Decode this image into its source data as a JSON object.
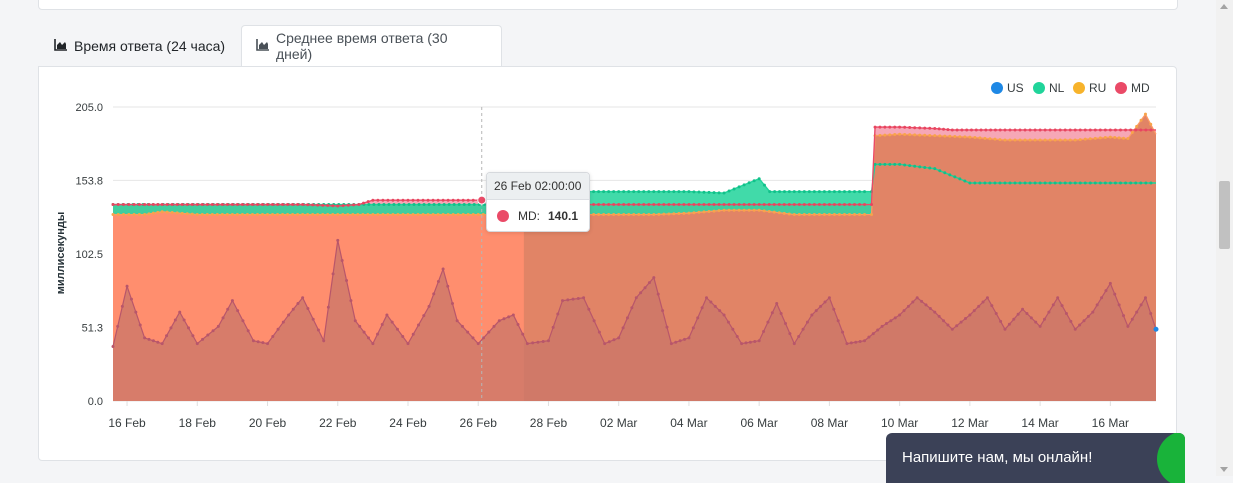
{
  "tabs": [
    {
      "label": "Время ответа (24 часа)",
      "icon": "area-chart-icon",
      "active": false
    },
    {
      "label": "Среднее время ответа (30 дней)",
      "icon": "area-chart-icon",
      "active": true
    }
  ],
  "tooltip": {
    "title": "26 Feb 02:00:00",
    "series": "MD:",
    "value": "140.1"
  },
  "chat": {
    "label": "Напишите нам, мы онлайн!"
  },
  "colors": {
    "US": "#1e88e5",
    "NL": "#20d49a",
    "RU": "#f7b32b",
    "MD": "#ea4a67",
    "fill_orange": "#ff8e6e",
    "fill_brown": "#c97b60"
  },
  "chart_data": {
    "type": "area",
    "ylabel": "миллисекунды",
    "ylim": [
      0,
      205
    ],
    "yticks": [
      "205.0",
      "153.8",
      "102.5",
      "51.3",
      "0.0"
    ],
    "xticks": [
      "16 Feb",
      "18 Feb",
      "20 Feb",
      "22 Feb",
      "24 Feb",
      "26 Feb",
      "28 Feb",
      "02 Mar",
      "04 Mar",
      "06 Mar",
      "08 Mar",
      "10 Mar",
      "12 Mar",
      "14 Mar",
      "16 Mar"
    ],
    "x_range": [
      15.6,
      45.3
    ],
    "x_note": "x values are days from 1 Feb",
    "legend": [
      "US",
      "NL",
      "RU",
      "MD"
    ],
    "legend_position": "top-right",
    "series": [
      {
        "name": "MD",
        "points": [
          [
            15.6,
            137
          ],
          [
            16.5,
            137
          ],
          [
            17,
            137
          ],
          [
            18,
            137
          ],
          [
            20,
            137
          ],
          [
            21,
            137
          ],
          [
            22,
            136
          ],
          [
            22.6,
            137
          ],
          [
            23,
            140
          ],
          [
            24,
            140
          ],
          [
            25,
            140
          ],
          [
            26,
            140
          ],
          [
            26.1,
            140.1
          ],
          [
            27,
            140
          ],
          [
            28,
            137
          ],
          [
            29,
            137
          ],
          [
            30,
            137
          ],
          [
            32,
            137
          ],
          [
            34,
            137
          ],
          [
            36,
            137
          ],
          [
            37,
            137
          ],
          [
            37.2,
            137
          ],
          [
            37.3,
            191
          ],
          [
            38,
            191
          ],
          [
            39,
            190
          ],
          [
            39.5,
            189
          ],
          [
            41,
            189
          ],
          [
            42,
            189
          ],
          [
            43,
            189
          ],
          [
            44,
            189
          ],
          [
            45.3,
            189
          ]
        ]
      },
      {
        "name": "NL",
        "points": [
          [
            15.6,
            137
          ],
          [
            26.6,
            137
          ],
          [
            27,
            146
          ],
          [
            28,
            146
          ],
          [
            29,
            146
          ],
          [
            30,
            146
          ],
          [
            31,
            146
          ],
          [
            32,
            146
          ],
          [
            33,
            145
          ],
          [
            34,
            155
          ],
          [
            34.3,
            146
          ],
          [
            35,
            146
          ],
          [
            36,
            146
          ],
          [
            37,
            146
          ],
          [
            37.2,
            146
          ],
          [
            37.3,
            165
          ],
          [
            38,
            165
          ],
          [
            39,
            162
          ],
          [
            40,
            152
          ],
          [
            42,
            152
          ],
          [
            44,
            152
          ],
          [
            45.3,
            152
          ]
        ]
      },
      {
        "name": "RU",
        "points": [
          [
            15.6,
            130
          ],
          [
            16.5,
            130
          ],
          [
            17,
            132
          ],
          [
            18,
            130
          ],
          [
            20,
            130
          ],
          [
            22,
            130
          ],
          [
            24,
            130
          ],
          [
            26,
            130
          ],
          [
            28,
            130
          ],
          [
            30,
            130
          ],
          [
            31,
            130
          ],
          [
            32,
            131
          ],
          [
            33,
            133
          ],
          [
            34,
            133
          ],
          [
            35,
            130
          ],
          [
            36,
            130
          ],
          [
            37,
            130
          ],
          [
            37.2,
            130
          ],
          [
            37.3,
            185
          ],
          [
            38,
            186
          ],
          [
            39,
            185
          ],
          [
            40,
            184
          ],
          [
            41,
            182
          ],
          [
            42,
            182
          ],
          [
            43,
            182
          ],
          [
            44,
            184
          ],
          [
            44.5,
            183
          ],
          [
            45,
            200
          ],
          [
            45.3,
            186
          ]
        ]
      },
      {
        "name": "US",
        "points": [
          [
            15.6,
            38
          ],
          [
            16,
            80
          ],
          [
            16.5,
            44
          ],
          [
            17,
            40
          ],
          [
            17.5,
            62
          ],
          [
            18,
            40
          ],
          [
            18.6,
            52
          ],
          [
            19,
            70
          ],
          [
            19.6,
            42
          ],
          [
            20,
            40
          ],
          [
            20.6,
            60
          ],
          [
            21,
            72
          ],
          [
            21.6,
            42
          ],
          [
            22,
            112
          ],
          [
            22.5,
            56
          ],
          [
            23,
            40
          ],
          [
            23.4,
            60
          ],
          [
            24,
            40
          ],
          [
            24.6,
            66
          ],
          [
            25,
            92
          ],
          [
            25.4,
            56
          ],
          [
            26,
            40
          ],
          [
            26.6,
            56
          ],
          [
            27,
            60
          ],
          [
            27.4,
            40
          ],
          [
            28,
            42
          ],
          [
            28.4,
            70
          ],
          [
            29,
            72
          ],
          [
            29.6,
            40
          ],
          [
            30,
            44
          ],
          [
            30.5,
            72
          ],
          [
            31,
            86
          ],
          [
            31.5,
            40
          ],
          [
            32,
            44
          ],
          [
            32.5,
            72
          ],
          [
            33,
            60
          ],
          [
            33.5,
            40
          ],
          [
            34,
            42
          ],
          [
            34.5,
            68
          ],
          [
            35,
            40
          ],
          [
            35.5,
            60
          ],
          [
            36,
            72
          ],
          [
            36.5,
            40
          ],
          [
            37,
            42
          ],
          [
            37.5,
            52
          ],
          [
            38,
            60
          ],
          [
            38.5,
            72
          ],
          [
            39,
            62
          ],
          [
            39.5,
            50
          ],
          [
            40,
            60
          ],
          [
            40.5,
            72
          ],
          [
            41,
            50
          ],
          [
            41.5,
            64
          ],
          [
            42,
            52
          ],
          [
            42.5,
            72
          ],
          [
            43,
            50
          ],
          [
            43.5,
            62
          ],
          [
            44,
            82
          ],
          [
            44.5,
            52
          ],
          [
            45,
            72
          ],
          [
            45.3,
            50
          ]
        ]
      }
    ],
    "tooltip_x": 26.1
  }
}
